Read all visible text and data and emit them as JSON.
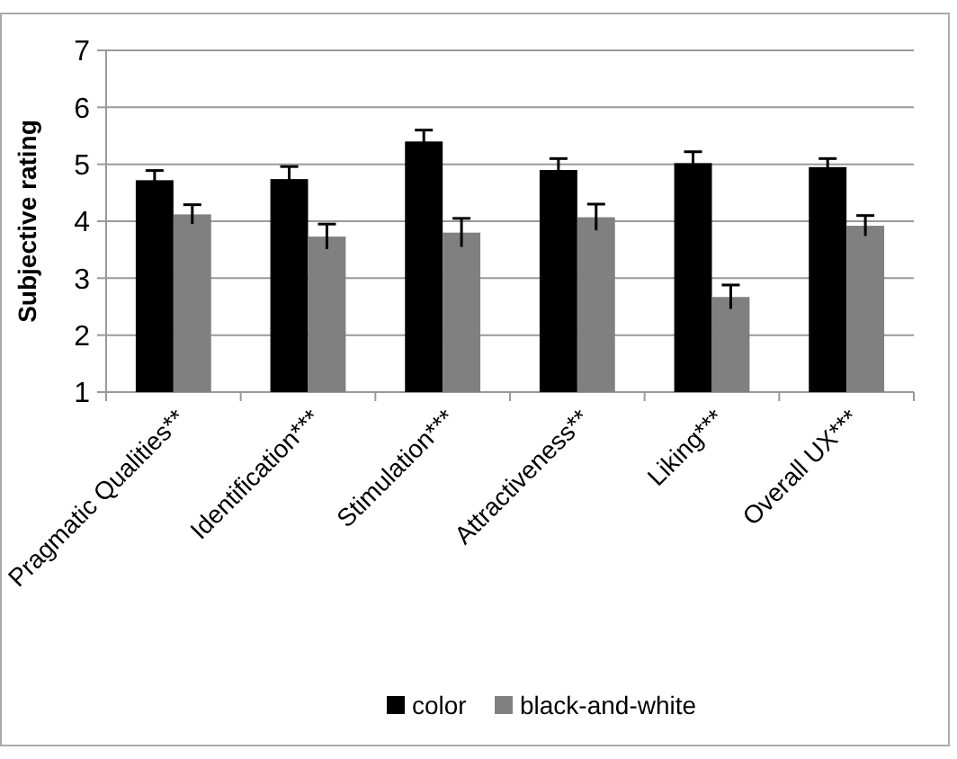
{
  "chart_data": {
    "type": "bar",
    "ylabel": "Subjective rating",
    "categories": [
      "Pragmatic Qualities**",
      "Identification***",
      "Stimulation***",
      "Attractiveness**",
      "Liking***",
      "Overall UX***"
    ],
    "series": [
      {
        "name": "color",
        "color": "#000000",
        "values": [
          4.72,
          4.74,
          5.4,
          4.9,
          5.02,
          4.95
        ],
        "errors": [
          0.17,
          0.22,
          0.2,
          0.2,
          0.2,
          0.15
        ]
      },
      {
        "name": "black-and-white",
        "color": "#808080",
        "values": [
          4.12,
          3.73,
          3.8,
          4.07,
          2.67,
          3.92
        ],
        "errors": [
          0.17,
          0.22,
          0.25,
          0.23,
          0.21,
          0.18
        ]
      }
    ],
    "ylim": [
      1,
      7
    ],
    "yticks": [
      1,
      2,
      3,
      4,
      5,
      6,
      7
    ],
    "grid": "y",
    "legend": "bottom"
  }
}
